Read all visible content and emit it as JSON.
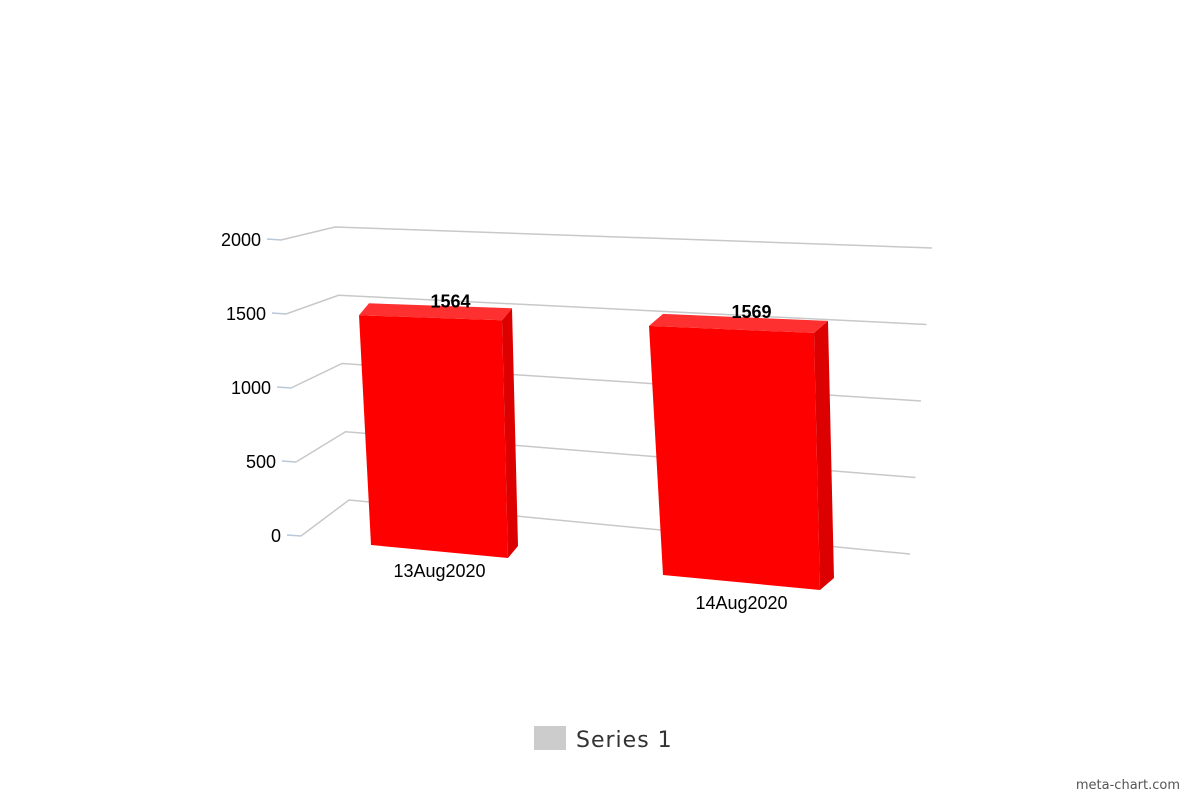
{
  "chart_data": {
    "type": "bar",
    "categories": [
      "13Aug2020",
      "14Aug2020"
    ],
    "series": [
      {
        "name": "Series 1",
        "values": [
          1564,
          1569
        ],
        "color": "#ff0000"
      }
    ],
    "ylim": [
      0,
      2000
    ],
    "yticks": [
      0,
      500,
      1000,
      1500,
      2000
    ],
    "grid": true,
    "legend": "bottom-center",
    "legend_swatch_color": "#cccccc",
    "style": "3d-perspective"
  },
  "credit": "meta-chart.com"
}
